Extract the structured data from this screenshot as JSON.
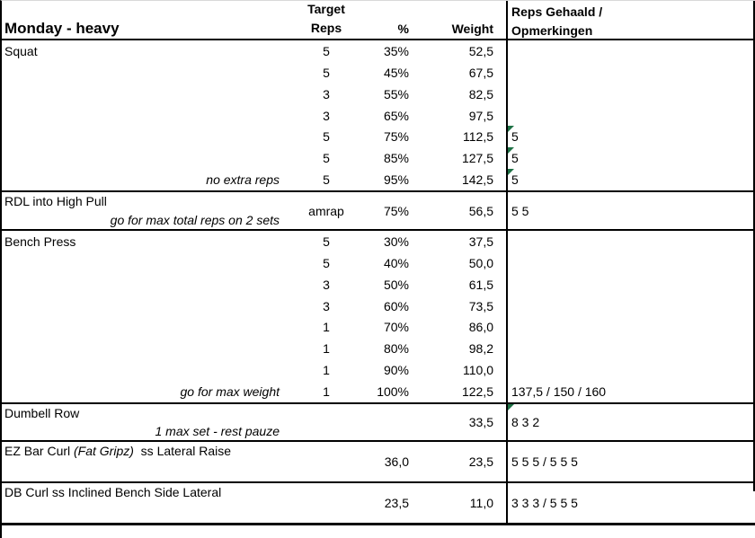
{
  "colors": {
    "flag_green": "#1e7145",
    "border_black": "#000000",
    "top_edge_gray": "#d9d9d9",
    "text": "#000000",
    "bg": "#ffffff"
  },
  "table": {
    "header": {
      "title": "Monday - heavy",
      "target_line1": "Target",
      "target_line2": "Reps",
      "percent": "%",
      "weight": "Weight",
      "remarks_line1": "Reps Gehaald /",
      "remarks_line2": "Opmerkingen"
    },
    "sections": [
      {
        "name": "Squat",
        "name_italic": "",
        "name_suffix": "",
        "layout": "rows",
        "rows": [
          {
            "reps": "5",
            "pct": "35%",
            "weight": "52,5",
            "remark": "",
            "flagged": false,
            "note": ""
          },
          {
            "reps": "5",
            "pct": "45%",
            "weight": "67,5",
            "remark": "",
            "flagged": false,
            "note": ""
          },
          {
            "reps": "3",
            "pct": "55%",
            "weight": "82,5",
            "remark": "",
            "flagged": false,
            "note": ""
          },
          {
            "reps": "3",
            "pct": "65%",
            "weight": "97,5",
            "remark": "",
            "flagged": false,
            "note": ""
          },
          {
            "reps": "5",
            "pct": "75%",
            "weight": "112,5",
            "remark": "5",
            "flagged": true,
            "note": ""
          },
          {
            "reps": "5",
            "pct": "85%",
            "weight": "127,5",
            "remark": "5",
            "flagged": true,
            "note": ""
          },
          {
            "reps": "5",
            "pct": "95%",
            "weight": "142,5",
            "remark": "5",
            "flagged": true,
            "note": "no extra reps"
          }
        ]
      },
      {
        "name": "RDL into High Pull",
        "name_italic": "",
        "name_suffix": "",
        "layout": "stacked",
        "note": "go for max total reps on 2 sets",
        "reps": "amrap",
        "pct": "75%",
        "weight": "56,5",
        "remark": "5 5",
        "flagged": false
      },
      {
        "name": "Bench Press",
        "name_italic": "",
        "name_suffix": "",
        "layout": "rows",
        "rows": [
          {
            "reps": "5",
            "pct": "30%",
            "weight": "37,5",
            "remark": "",
            "flagged": false,
            "note": ""
          },
          {
            "reps": "5",
            "pct": "40%",
            "weight": "50,0",
            "remark": "",
            "flagged": false,
            "note": ""
          },
          {
            "reps": "3",
            "pct": "50%",
            "weight": "61,5",
            "remark": "",
            "flagged": false,
            "note": ""
          },
          {
            "reps": "3",
            "pct": "60%",
            "weight": "73,5",
            "remark": "",
            "flagged": false,
            "note": ""
          },
          {
            "reps": "1",
            "pct": "70%",
            "weight": "86,0",
            "remark": "",
            "flagged": false,
            "note": ""
          },
          {
            "reps": "1",
            "pct": "80%",
            "weight": "98,2",
            "remark": "",
            "flagged": false,
            "note": ""
          },
          {
            "reps": "1",
            "pct": "90%",
            "weight": "110,0",
            "remark": "",
            "flagged": false,
            "note": ""
          },
          {
            "reps": "1",
            "pct": "100%",
            "weight": "122,5",
            "remark": "137,5 / 150 / 160",
            "flagged": false,
            "note": "go for max weight"
          }
        ]
      },
      {
        "name": "Dumbell Row",
        "name_italic": "",
        "name_suffix": "",
        "layout": "stacked",
        "note": "1 max set - rest pauze",
        "reps": "",
        "pct": "",
        "weight": "33,5",
        "remark": "8 3 2",
        "flagged": true
      },
      {
        "name": "EZ Bar Curl ",
        "name_italic": "(Fat Gripz)",
        "name_suffix": "  ss Lateral Raise",
        "layout": "stacked",
        "note": "",
        "reps": "",
        "pct": "36,0",
        "weight": "23,5",
        "remark": "5 5 5 / 5 5 5",
        "flagged": false
      },
      {
        "name": "DB Curl ss Inclined Bench Side Lateral",
        "name_italic": "",
        "name_suffix": "",
        "layout": "stacked",
        "note": "",
        "reps": "",
        "pct": "23,5",
        "weight": "11,0",
        "remark": "3 3 3 / 5 5 5",
        "flagged": false
      }
    ]
  }
}
